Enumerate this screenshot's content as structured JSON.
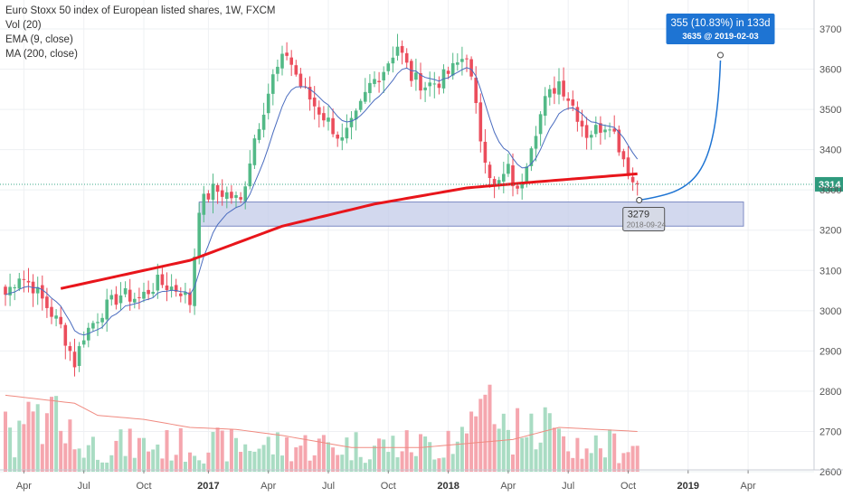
{
  "legend": {
    "title": "Euro Stoxx 50 index of European listed shares, 1W, FXCM",
    "line2": "Vol (20)",
    "line3": "EMA (9, close)",
    "line4": "MA (200, close)"
  },
  "price_tag": "3314",
  "target_box": {
    "line1": "355 (10.83%) in 133d",
    "line2": "3635 @ 2019-02-03"
  },
  "low_box": {
    "line1": "3279",
    "line2": "2018-09-24"
  },
  "colors": {
    "up": "#53b987",
    "down": "#eb4d5c",
    "vol_up": "#a9dcc3",
    "vol_down": "#f5a6ae",
    "ma200": "#e8151b",
    "ema9": "#4a6cbf",
    "vol_ma": "#f08a80",
    "zone_fill": "#c3cbe8",
    "zone_stroke": "#7d8bc4",
    "arrow": "#1e74d3",
    "tag_bg": "#1e74d3"
  },
  "chart_data": {
    "type": "candlestick",
    "title": "Euro Stoxx 50 index of European listed shares, 1W, FXCM",
    "y_axis": {
      "min": 2600,
      "max": 3700,
      "ticks": [
        2600,
        2700,
        2800,
        2900,
        3000,
        3100,
        3200,
        3300,
        3400,
        3500,
        3600,
        3700
      ]
    },
    "x_axis": {
      "labels": [
        {
          "text": "Apr",
          "bold": false
        },
        {
          "text": "Jul",
          "bold": false
        },
        {
          "text": "Oct",
          "bold": false
        },
        {
          "text": "2017",
          "bold": true
        },
        {
          "text": "Apr",
          "bold": false
        },
        {
          "text": "Jul",
          "bold": false
        },
        {
          "text": "Oct",
          "bold": false
        },
        {
          "text": "2018",
          "bold": true
        },
        {
          "text": "Apr",
          "bold": false
        },
        {
          "text": "Jul",
          "bold": false
        },
        {
          "text": "Oct",
          "bold": false
        },
        {
          "text": "2019",
          "bold": true
        },
        {
          "text": "Apr",
          "bold": false
        }
      ],
      "tick_weeks": [
        4,
        17,
        30,
        44,
        57,
        70,
        83,
        96,
        109,
        122,
        135,
        148,
        161
      ]
    },
    "series_close_keypoints": [
      [
        0,
        3040
      ],
      [
        3,
        3090
      ],
      [
        6,
        3060
      ],
      [
        9,
        3010
      ],
      [
        12,
        2960
      ],
      [
        15,
        2870
      ],
      [
        17,
        2940
      ],
      [
        21,
        3000
      ],
      [
        25,
        3040
      ],
      [
        29,
        3030
      ],
      [
        33,
        3070
      ],
      [
        38,
        3050
      ],
      [
        40,
        3020
      ],
      [
        42,
        3260
      ],
      [
        45,
        3300
      ],
      [
        48,
        3290
      ],
      [
        51,
        3270
      ],
      [
        54,
        3430
      ],
      [
        58,
        3580
      ],
      [
        61,
        3640
      ],
      [
        64,
        3560
      ],
      [
        67,
        3510
      ],
      [
        70,
        3470
      ],
      [
        73,
        3420
      ],
      [
        76,
        3480
      ],
      [
        79,
        3560
      ],
      [
        82,
        3600
      ],
      [
        85,
        3660
      ],
      [
        88,
        3580
      ],
      [
        91,
        3560
      ],
      [
        94,
        3570
      ],
      [
        97,
        3600
      ],
      [
        100,
        3640
      ],
      [
        103,
        3430
      ],
      [
        106,
        3300
      ],
      [
        109,
        3350
      ],
      [
        111,
        3290
      ],
      [
        114,
        3420
      ],
      [
        117,
        3520
      ],
      [
        120,
        3570
      ],
      [
        123,
        3510
      ],
      [
        126,
        3440
      ],
      [
        128,
        3450
      ],
      [
        131,
        3470
      ],
      [
        134,
        3380
      ],
      [
        136,
        3320
      ],
      [
        137,
        3314
      ]
    ],
    "ma200_keypoints": [
      [
        12,
        3055
      ],
      [
        40,
        3125
      ],
      [
        60,
        3210
      ],
      [
        80,
        3265
      ],
      [
        100,
        3305
      ],
      [
        115,
        3320
      ],
      [
        137,
        3340
      ]
    ],
    "volume_ma_keypoints": [
      [
        0,
        2790
      ],
      [
        15,
        2770
      ],
      [
        20,
        2740
      ],
      [
        30,
        2730
      ],
      [
        40,
        2710
      ],
      [
        50,
        2705
      ],
      [
        60,
        2690
      ],
      [
        75,
        2660
      ],
      [
        90,
        2660
      ],
      [
        100,
        2670
      ],
      [
        110,
        2680
      ],
      [
        120,
        2710
      ],
      [
        137,
        2700
      ]
    ],
    "support_zone": {
      "y_from": 3210,
      "y_to": 3270,
      "week_from": 42,
      "week_to": 160
    },
    "current_price": 3314,
    "low_point": {
      "week": 137,
      "value": 3279,
      "date": "2018-09-24"
    },
    "projection_target": {
      "week": 155,
      "value": 3635,
      "date": "2019-02-03",
      "change": 355,
      "change_pct": "10.83%",
      "days": 133
    }
  }
}
